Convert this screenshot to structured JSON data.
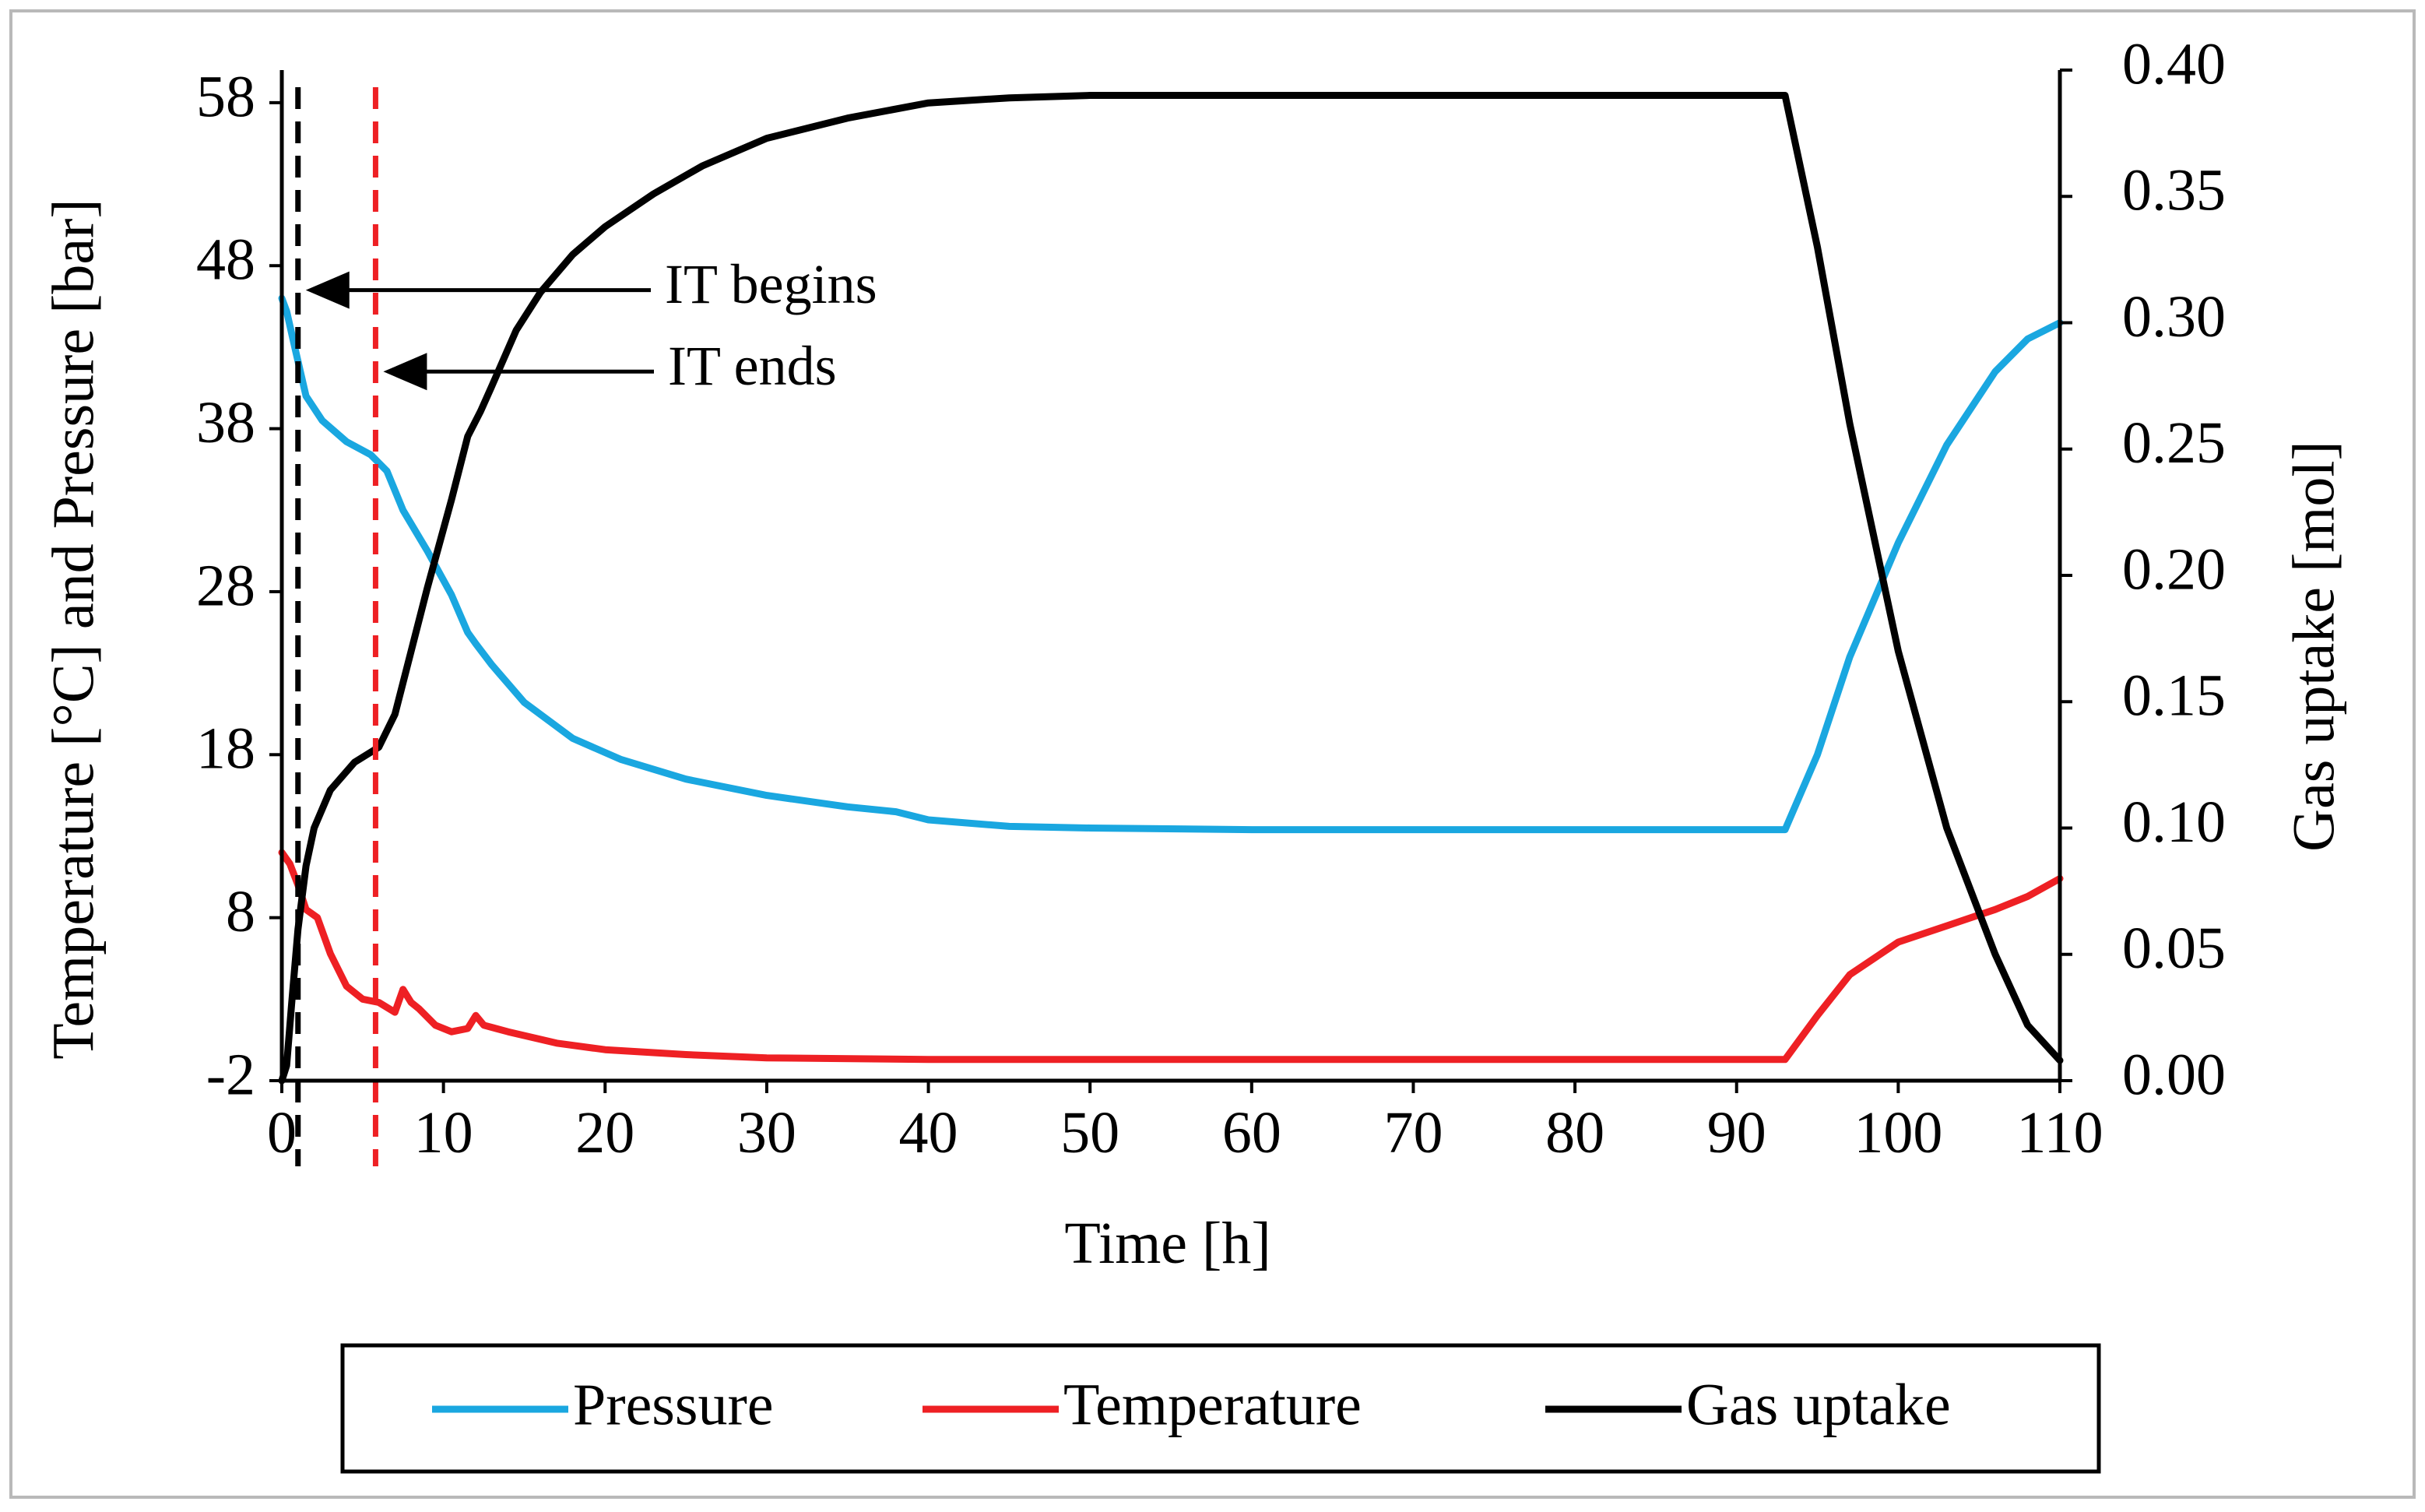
{
  "chart_data": {
    "type": "line",
    "title": "",
    "xlabel": "Time [h]",
    "ylabel_left": "Temperature [°C] and Pressure [bar]",
    "ylabel_right": "Gas uptake [mol]",
    "xlim": [
      0,
      110
    ],
    "ylim_left": [
      -2,
      60
    ],
    "ylim_right": [
      0,
      0.4
    ],
    "x_ticks": [
      0,
      10,
      20,
      30,
      40,
      50,
      60,
      70,
      80,
      90,
      100,
      110
    ],
    "x_tick_labels": [
      "0",
      "10",
      "20",
      "30",
      "40",
      "50",
      "60",
      "70",
      "80",
      "90",
      "100",
      "110"
    ],
    "y_left_ticks": [
      -2,
      8,
      18,
      28,
      38,
      48,
      58
    ],
    "y_left_tick_labels": [
      "-2",
      "8",
      "18",
      "28",
      "38",
      "48",
      "58"
    ],
    "y_right_ticks": [
      0,
      0.05,
      0.1,
      0.15,
      0.2,
      0.25,
      0.3,
      0.35,
      0.4
    ],
    "y_right_tick_labels": [
      "0.00",
      "0.05",
      "0.10",
      "0.15",
      "0.20",
      "0.25",
      "0.30",
      "0.35",
      "0.40"
    ],
    "grid": false,
    "legend_position": "bottom",
    "series": [
      {
        "name": "Pressure",
        "color": "#1aa7e0",
        "axis": "left",
        "x": [
          0,
          0.3,
          0.8,
          1.5,
          2.5,
          4,
          5.5,
          6.5,
          7.5,
          9,
          10.5,
          11.5,
          12,
          13,
          15,
          18,
          21,
          25,
          30,
          35,
          38,
          40,
          45,
          50,
          60,
          70,
          80,
          90,
          93,
          95,
          97,
          100,
          103,
          106,
          108,
          110
        ],
        "y": [
          46,
          45.2,
          43,
          40,
          38.5,
          37.2,
          36.4,
          35.4,
          33,
          30.5,
          27.8,
          25.5,
          24.8,
          23.5,
          21.2,
          19,
          17.7,
          16.5,
          15.5,
          14.8,
          14.5,
          14,
          13.6,
          13.5,
          13.4,
          13.4,
          13.4,
          13.4,
          13.4,
          18,
          24,
          31,
          37,
          41.5,
          43.5,
          44.5
        ]
      },
      {
        "name": "Temperature",
        "color": "#ee2024",
        "axis": "left",
        "x": [
          0,
          0.5,
          1,
          1.5,
          2.2,
          3,
          4,
          5,
          6,
          7,
          7.5,
          8,
          8.5,
          9.5,
          10.5,
          11.5,
          12,
          12.5,
          14,
          17,
          20,
          25,
          30,
          40,
          60,
          80,
          93,
          95,
          97,
          100,
          103,
          106,
          108,
          110
        ],
        "y": [
          12,
          11.3,
          10,
          8.5,
          8,
          5.8,
          3.8,
          3,
          2.8,
          2.2,
          3.6,
          2.8,
          2.4,
          1.4,
          1,
          1.2,
          2,
          1.4,
          1,
          0.3,
          -0.1,
          -0.4,
          -0.6,
          -0.7,
          -0.7,
          -0.7,
          -0.7,
          2,
          4.5,
          6.5,
          7.5,
          8.5,
          9.3,
          10.4
        ]
      },
      {
        "name": "Gas uptake",
        "color": "#000000",
        "axis": "right",
        "x": [
          0,
          0.3,
          0.6,
          1,
          1.5,
          2,
          3,
          4.5,
          6,
          7,
          8,
          9,
          10.5,
          11.5,
          12.3,
          13,
          14.5,
          16,
          18,
          20,
          23,
          26,
          30,
          35,
          40,
          45,
          50,
          60,
          70,
          80,
          90,
          93,
          95,
          97,
          100,
          103,
          106,
          108,
          110
        ],
        "y": [
          0,
          0.006,
          0.03,
          0.06,
          0.085,
          0.1,
          0.115,
          0.126,
          0.132,
          0.145,
          0.17,
          0.195,
          0.23,
          0.255,
          0.265,
          0.275,
          0.297,
          0.312,
          0.327,
          0.338,
          0.351,
          0.362,
          0.373,
          0.381,
          0.387,
          0.389,
          0.39,
          0.39,
          0.39,
          0.39,
          0.39,
          0.39,
          0.33,
          0.26,
          0.17,
          0.1,
          0.05,
          0.022,
          0.008
        ]
      }
    ],
    "vlines": [
      {
        "x": 1,
        "color": "#000000",
        "style": "dashed"
      },
      {
        "x": 5.8,
        "color": "#ee2024",
        "style": "dashed"
      }
    ],
    "annotations": [
      {
        "text": "IT begins",
        "arrow_to_x": 1,
        "arrow_at_y": 46.5
      },
      {
        "text": "IT ends",
        "arrow_to_x": 5.8,
        "arrow_at_y": 41.5
      }
    ]
  }
}
